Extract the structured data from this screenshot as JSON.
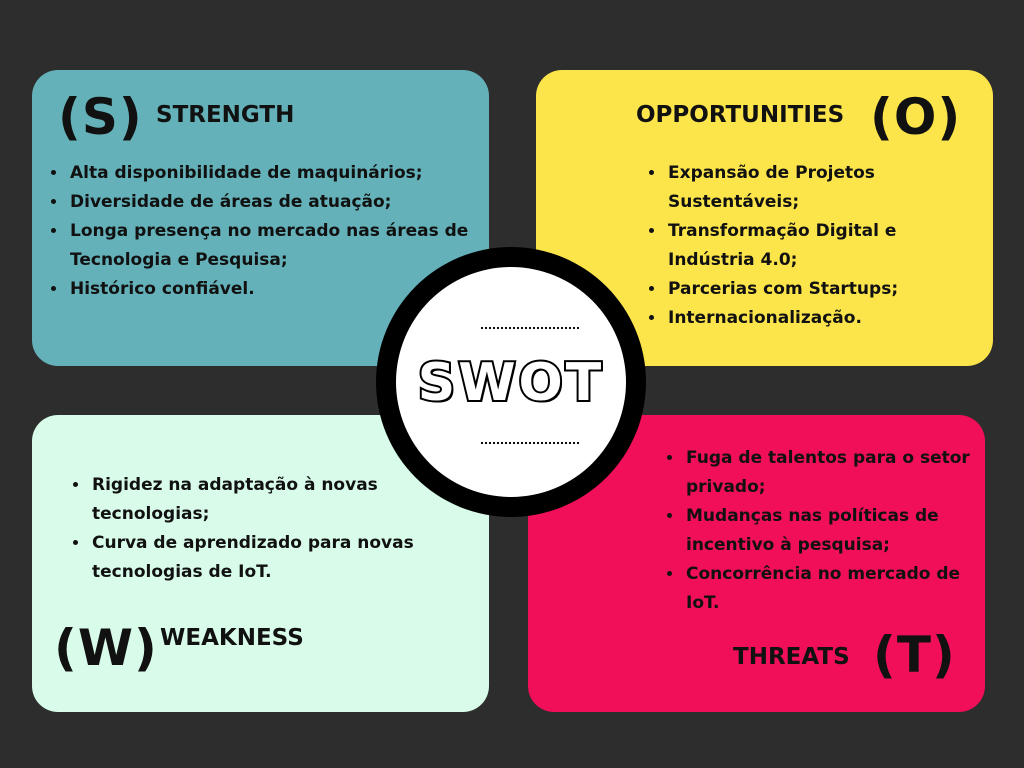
{
  "center": {
    "title": "SWOT"
  },
  "strength": {
    "letter": "(S)",
    "label": "STRENGTH",
    "items": [
      "Alta disponibilidade de maquinários;",
      "Diversidade de áreas de atuação;",
      "Longa presença no mercado nas áreas de Tecnologia e Pesquisa;",
      "Histórico confiável."
    ]
  },
  "opportunities": {
    "letter": "(O)",
    "label": "OPPORTUNITIES",
    "items": [
      "Expansão de Projetos Sustentáveis;",
      "Transformação Digital e Indústria 4.0;",
      "Parcerias com Startups;",
      "Internacionalização."
    ]
  },
  "weakness": {
    "letter": "(W)",
    "label": "WEAKNESS",
    "items": [
      "Rigidez na adaptação à novas tecnologias;",
      "Curva de aprendizado para novas tecnologias de IoT."
    ]
  },
  "threats": {
    "letter": "(T)",
    "label": "THREATS",
    "items": [
      "Fuga de talentos para o setor privado;",
      "Mudanças nas políticas de incentivo à pesquisa;",
      "Concorrência no mercado de IoT."
    ]
  },
  "colors": {
    "background": "#2d2d2d",
    "strength": "#64b1b9",
    "opportunities": "#fce54a",
    "weakness": "#d8fce9",
    "threats": "#f00f58"
  }
}
